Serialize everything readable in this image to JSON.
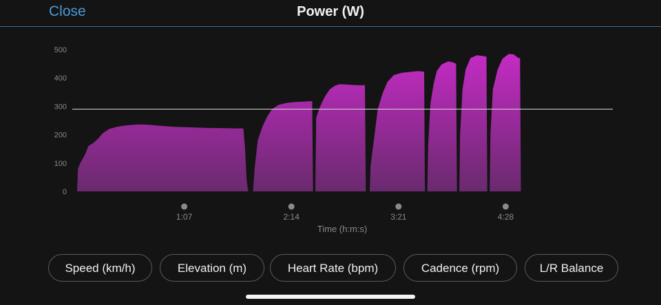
{
  "header": {
    "close_label": "Close",
    "title": "Power (W)"
  },
  "colors": {
    "background": "#141414",
    "accent_link": "#4a9bd8",
    "header_rule": "#3a6f96",
    "fill_top": "#c42bc4",
    "fill_bottom": "#6a2a6e",
    "reference_line": "#d8d8d8",
    "tick_text": "#8a8a8a"
  },
  "chart_data": {
    "type": "area",
    "title": "Power (W)",
    "xlabel": "Time (h:m:s)",
    "ylabel": "",
    "ylim": [
      0,
      500
    ],
    "y_ticks": [
      "0",
      "100",
      "200",
      "300",
      "400",
      "500"
    ],
    "x_ticks": [
      "1:07",
      "2:14",
      "3:21",
      "4:28"
    ],
    "x_tick_seconds": [
      67,
      134,
      201,
      268
    ],
    "xlim_seconds": [
      0,
      335
    ],
    "grid": false,
    "reference_line": 290,
    "series": [
      {
        "points": [
          [
            0,
            0
          ],
          [
            0.5,
            80
          ],
          [
            2,
            100
          ],
          [
            5,
            130
          ],
          [
            7,
            160
          ],
          [
            10,
            170
          ],
          [
            13,
            185
          ],
          [
            16,
            205
          ],
          [
            20,
            220
          ],
          [
            25,
            228
          ],
          [
            30,
            232
          ],
          [
            35,
            235
          ],
          [
            40,
            236
          ],
          [
            45,
            235
          ],
          [
            50,
            232
          ],
          [
            55,
            230
          ],
          [
            60,
            228
          ],
          [
            70,
            226
          ],
          [
            80,
            224
          ],
          [
            90,
            223
          ],
          [
            100,
            222
          ],
          [
            104,
            222
          ],
          [
            105,
            150
          ],
          [
            106,
            40
          ],
          [
            107,
            0
          ],
          [
            110,
            0
          ],
          [
            111,
            80
          ],
          [
            113,
            180
          ],
          [
            116,
            230
          ],
          [
            119,
            265
          ],
          [
            122,
            290
          ],
          [
            126,
            305
          ],
          [
            131,
            312
          ],
          [
            136,
            315
          ],
          [
            141,
            316
          ],
          [
            146,
            318
          ],
          [
            147,
            318
          ],
          [
            147.5,
            0
          ],
          [
            149,
            0
          ],
          [
            149.5,
            260
          ],
          [
            152,
            300
          ],
          [
            155,
            335
          ],
          [
            158,
            360
          ],
          [
            161,
            372
          ],
          [
            164,
            378
          ],
          [
            168,
            377
          ],
          [
            173,
            375
          ],
          [
            178,
            374
          ],
          [
            180,
            375
          ],
          [
            180.5,
            0
          ],
          [
            183,
            0
          ],
          [
            183.5,
            90
          ],
          [
            186,
            200
          ],
          [
            188,
            290
          ],
          [
            191,
            345
          ],
          [
            194,
            385
          ],
          [
            198,
            410
          ],
          [
            203,
            418
          ],
          [
            208,
            421
          ],
          [
            213,
            424
          ],
          [
            217,
            422
          ],
          [
            217.5,
            0
          ],
          [
            219,
            0
          ],
          [
            219.5,
            160
          ],
          [
            221,
            310
          ],
          [
            223,
            380
          ],
          [
            225,
            425
          ],
          [
            228,
            448
          ],
          [
            232,
            458
          ],
          [
            235,
            455
          ],
          [
            237,
            450
          ],
          [
            237.5,
            0
          ],
          [
            239,
            0
          ],
          [
            239.5,
            200
          ],
          [
            241,
            360
          ],
          [
            243,
            430
          ],
          [
            246,
            470
          ],
          [
            250,
            480
          ],
          [
            253,
            478
          ],
          [
            256,
            475
          ],
          [
            256.5,
            0
          ],
          [
            258,
            0
          ],
          [
            258.5,
            200
          ],
          [
            260,
            360
          ],
          [
            263,
            430
          ],
          [
            266,
            468
          ],
          [
            270,
            485
          ],
          [
            273,
            483
          ],
          [
            276,
            470
          ],
          [
            277,
            470
          ],
          [
            277.5,
            0
          ]
        ]
      }
    ]
  },
  "metrics": [
    "Speed (km/h)",
    "Elevation (m)",
    "Heart Rate (bpm)",
    "Cadence (rpm)",
    "L/R Balance"
  ]
}
